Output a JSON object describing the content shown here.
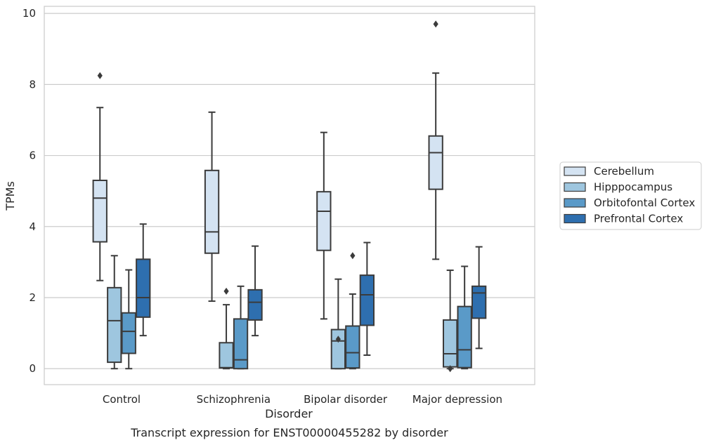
{
  "chart_data": {
    "type": "box",
    "xlabel": "Disorder",
    "ylabel": "TPMs",
    "caption": "Transcript expression for ENST00000455282 by disorder",
    "ylim": [
      -0.45,
      10.2
    ],
    "yticks": [
      0,
      2,
      4,
      6,
      8,
      10
    ],
    "grid": "horizontal",
    "legend_position": "right",
    "categories": [
      "Control",
      "Schizophrenia",
      "Bipolar disorder",
      "Major depression"
    ],
    "series": [
      {
        "name": "Cerebellum",
        "color": "#d4e3f2",
        "boxes": [
          {
            "whislo": 2.48,
            "q1": 3.57,
            "med": 4.8,
            "q3": 5.3,
            "whishi": 7.35,
            "fliers": [
              8.25
            ]
          },
          {
            "whislo": 1.9,
            "q1": 3.25,
            "med": 3.85,
            "q3": 5.58,
            "whishi": 7.22,
            "fliers": []
          },
          {
            "whislo": 1.4,
            "q1": 3.33,
            "med": 4.43,
            "q3": 4.98,
            "whishi": 6.65,
            "fliers": []
          },
          {
            "whislo": 3.08,
            "q1": 5.05,
            "med": 6.08,
            "q3": 6.55,
            "whishi": 8.32,
            "fliers": [
              9.7
            ]
          }
        ]
      },
      {
        "name": "Hipppocampus",
        "color": "#9ec6df",
        "boxes": [
          {
            "whislo": 0.0,
            "q1": 0.18,
            "med": 1.35,
            "q3": 2.28,
            "whishi": 3.18,
            "fliers": []
          },
          {
            "whislo": 0.0,
            "q1": 0.02,
            "med": 0.03,
            "q3": 0.73,
            "whishi": 1.8,
            "fliers": [
              2.18
            ]
          },
          {
            "whislo": 0.0,
            "q1": 0.0,
            "med": 0.78,
            "q3": 1.1,
            "whishi": 2.52,
            "fliers": [
              0.83
            ]
          },
          {
            "whislo": 0.0,
            "q1": 0.05,
            "med": 0.42,
            "q3": 1.37,
            "whishi": 2.77,
            "fliers": [
              0.0
            ]
          }
        ]
      },
      {
        "name": "Orbitofontal Cortex",
        "color": "#5a9ac8",
        "boxes": [
          {
            "whislo": 0.0,
            "q1": 0.43,
            "med": 1.05,
            "q3": 1.57,
            "whishi": 2.78,
            "fliers": []
          },
          {
            "whislo": 0.0,
            "q1": 0.0,
            "med": 0.25,
            "q3": 1.4,
            "whishi": 2.32,
            "fliers": []
          },
          {
            "whislo": 0.0,
            "q1": 0.02,
            "med": 0.45,
            "q3": 1.2,
            "whishi": 2.1,
            "fliers": [
              3.18
            ]
          },
          {
            "whislo": 0.0,
            "q1": 0.03,
            "med": 0.53,
            "q3": 1.75,
            "whishi": 2.88,
            "fliers": []
          }
        ]
      },
      {
        "name": "Prefrontal Cortex",
        "color": "#2e6faf",
        "boxes": [
          {
            "whislo": 0.93,
            "q1": 1.45,
            "med": 2.0,
            "q3": 3.08,
            "whishi": 4.07,
            "fliers": []
          },
          {
            "whislo": 0.93,
            "q1": 1.37,
            "med": 1.87,
            "q3": 2.22,
            "whishi": 3.45,
            "fliers": []
          },
          {
            "whislo": 0.38,
            "q1": 1.22,
            "med": 2.08,
            "q3": 2.63,
            "whishi": 3.55,
            "fliers": []
          },
          {
            "whislo": 0.57,
            "q1": 1.42,
            "med": 2.13,
            "q3": 2.32,
            "whishi": 3.43,
            "fliers": []
          }
        ]
      }
    ]
  }
}
